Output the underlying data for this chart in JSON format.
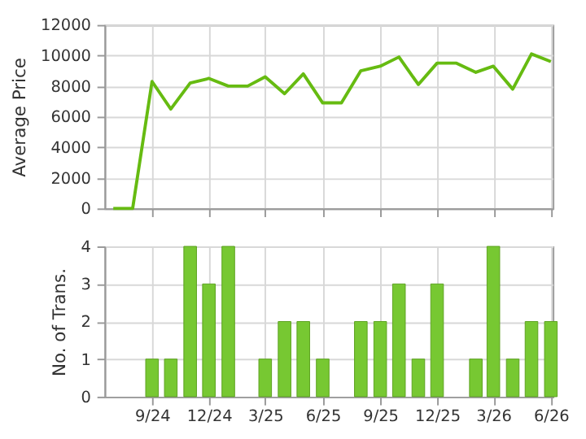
{
  "chart_data": [
    {
      "type": "line",
      "ylabel": "Average Price",
      "x": [
        "2024-07",
        "2024-08",
        "2024-09",
        "2024-10",
        "2024-11",
        "2024-12",
        "2025-01",
        "2025-02",
        "2025-03",
        "2025-04",
        "2025-05",
        "2025-06",
        "2025-07",
        "2025-08",
        "2025-09",
        "2025-10",
        "2025-11",
        "2025-12",
        "2026-01",
        "2026-02",
        "2026-03",
        "2026-04",
        "2026-05",
        "2026-06"
      ],
      "series": [
        {
          "color": "#66bb11",
          "values": [
            0,
            0,
            8300,
            6500,
            8200,
            8500,
            8000,
            8000,
            8600,
            7500,
            8800,
            6900,
            6900,
            9000,
            9300,
            9900,
            8100,
            9500,
            9500,
            8900,
            9300,
            7800,
            10100,
            9600
          ]
        }
      ],
      "xlim": [
        "2024-06-17",
        "2026-06-04"
      ],
      "xticks": [
        {
          "value": "2024-09",
          "label": null
        },
        {
          "value": "2024-12",
          "label": null
        },
        {
          "value": "2025-03",
          "label": null
        },
        {
          "value": "2025-06",
          "label": null
        },
        {
          "value": "2025-09",
          "label": null
        },
        {
          "value": "2025-12",
          "label": null
        },
        {
          "value": "2026-03",
          "label": null
        },
        {
          "value": "2026-06",
          "label": null
        }
      ],
      "ylim": [
        0,
        12000
      ],
      "yticks": [
        0,
        2000,
        4000,
        6000,
        8000,
        10000,
        12000
      ],
      "grid": true,
      "tick_labels": "y",
      "marker": "none",
      "line_style": "solid"
    },
    {
      "type": "bar",
      "ylabel": "No. of Trans.",
      "x": [
        "2024-09",
        "2024-10",
        "2024-11",
        "2024-12",
        "2025-01",
        "2025-03",
        "2025-04",
        "2025-05",
        "2025-06",
        "2025-08",
        "2025-09",
        "2025-10",
        "2025-11",
        "2025-12",
        "2026-02",
        "2026-03",
        "2026-04",
        "2026-05",
        "2026-06"
      ],
      "series": [
        {
          "color": "#77c832",
          "values": [
            1,
            1,
            4,
            3,
            4,
            1,
            2,
            2,
            1,
            2,
            2,
            3,
            1,
            3,
            1,
            4,
            1,
            2,
            2
          ]
        }
      ],
      "xlim": [
        "2024-06-17",
        "2026-06-04"
      ],
      "xticks": [
        {
          "value": "2024-09",
          "label": "9/24"
        },
        {
          "value": "2024-12",
          "label": "12/24"
        },
        {
          "value": "2025-03",
          "label": "3/25"
        },
        {
          "value": "2025-06",
          "label": "6/25"
        },
        {
          "value": "2025-09",
          "label": "9/25"
        },
        {
          "value": "2025-12",
          "label": "12/25"
        },
        {
          "value": "2026-03",
          "label": "3/26"
        },
        {
          "value": "2026-06",
          "label": "6/26"
        }
      ],
      "ylim": [
        0,
        4
      ],
      "yticks": [
        0,
        1,
        2,
        3,
        4
      ],
      "grid": true
    }
  ]
}
